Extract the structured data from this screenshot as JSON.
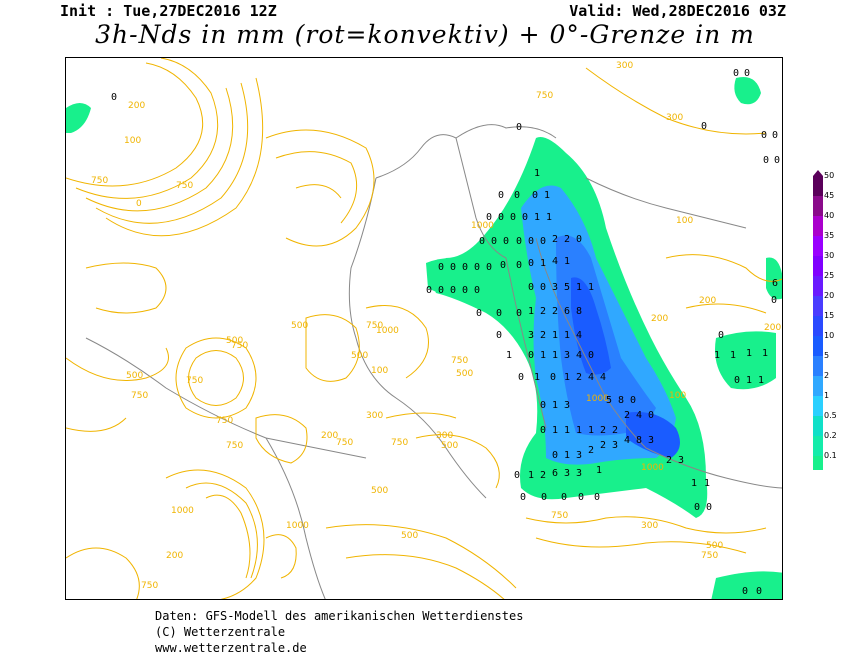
{
  "header": {
    "init": "Init : Tue,27DEC2016 12Z",
    "valid": "Valid: Wed,28DEC2016 03Z",
    "title": "3h-Nds in mm (rot=konvektiv) + 0°-Grenze in m"
  },
  "legend": {
    "labels": [
      "50",
      "45",
      "40",
      "35",
      "30",
      "25",
      "20",
      "15",
      "10",
      "5",
      "2",
      "1",
      "0.5",
      "0.2",
      "0.1"
    ],
    "colors": [
      "#5a005a",
      "#8a0a8a",
      "#aa00cc",
      "#9a00ff",
      "#8000ff",
      "#6a1aff",
      "#4a3cff",
      "#2a4aff",
      "#1a5cff",
      "#2a80ff",
      "#30a8ff",
      "#2ad0ff",
      "#10e0c8",
      "#14ecaa",
      "#18f08c"
    ]
  },
  "map": {
    "contour_labels": [
      "0",
      "100",
      "200",
      "300",
      "500",
      "750",
      "1000"
    ],
    "precip_labels": [
      "0",
      "1",
      "2",
      "3",
      "4",
      "5",
      "6",
      "8"
    ]
  },
  "footer": {
    "line1": "Daten: GFS-Modell des amerikanischen Wetterdienstes",
    "line2": "(C) Wetterzentrale",
    "line3": "www.wetterzentrale.de"
  }
}
